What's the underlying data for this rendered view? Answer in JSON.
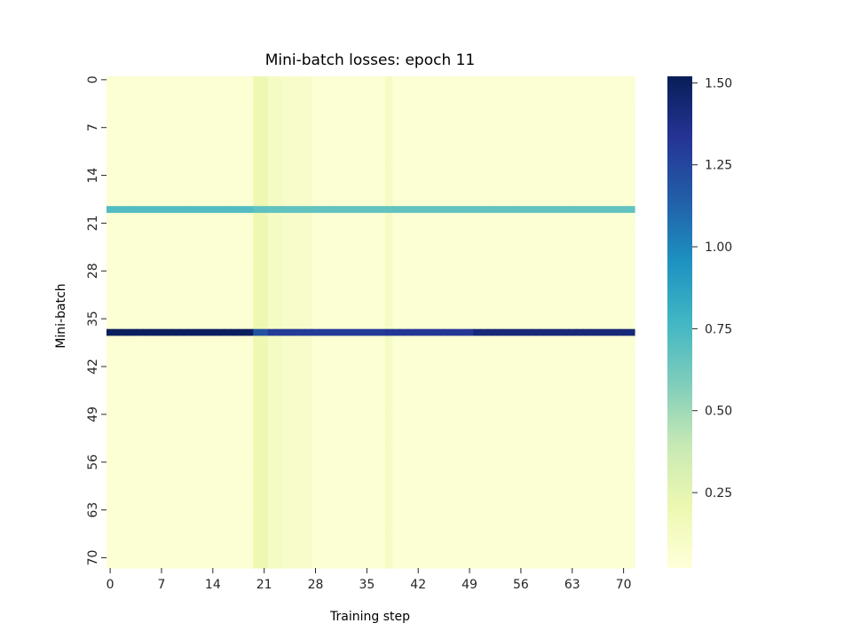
{
  "chart_data": {
    "type": "heatmap",
    "title": "Mini-batch losses: epoch 11",
    "xlabel": "Training step",
    "ylabel": "Mini-batch",
    "n_rows": 72,
    "n_cols": 72,
    "x_ticks": [
      "0",
      "7",
      "14",
      "21",
      "28",
      "35",
      "42",
      "49",
      "56",
      "63",
      "70"
    ],
    "y_ticks": [
      "0",
      "7",
      "14",
      "21",
      "28",
      "35",
      "42",
      "49",
      "56",
      "63",
      "70"
    ],
    "colorbar": {
      "min": 0.02,
      "max": 1.52,
      "ticks": [
        "0.25",
        "0.50",
        "0.75",
        "1.00",
        "1.25",
        "1.50"
      ],
      "colormap": "YlGnBu",
      "colors": [
        "#ffffd9",
        "#edf8b1",
        "#c7e9b4",
        "#7fcdbb",
        "#41b6c4",
        "#1d91c0",
        "#225ea8",
        "#253494",
        "#081d58"
      ]
    },
    "base_loss": 0.05,
    "column_effects": [
      {
        "columns": [
          20,
          21
        ],
        "value": 0.2
      },
      {
        "columns": [
          22,
          23
        ],
        "value": 0.12
      },
      {
        "columns": [
          24,
          25,
          26,
          27
        ],
        "value": 0.09
      },
      {
        "columns": [
          38
        ],
        "value": 0.12
      }
    ],
    "high_rows": [
      {
        "row": 19,
        "segments": [
          {
            "from": 0,
            "to": 19,
            "value": 0.72
          },
          {
            "from": 20,
            "to": 21,
            "value": 0.68
          },
          {
            "from": 22,
            "to": 71,
            "value": 0.67
          }
        ]
      },
      {
        "row": 37,
        "segments": [
          {
            "from": 0,
            "to": 19,
            "value": 1.5
          },
          {
            "from": 20,
            "to": 21,
            "value": 1.2
          },
          {
            "from": 22,
            "to": 37,
            "value": 1.3
          },
          {
            "from": 38,
            "to": 49,
            "value": 1.32
          },
          {
            "from": 50,
            "to": 71,
            "value": 1.42
          }
        ]
      }
    ]
  }
}
